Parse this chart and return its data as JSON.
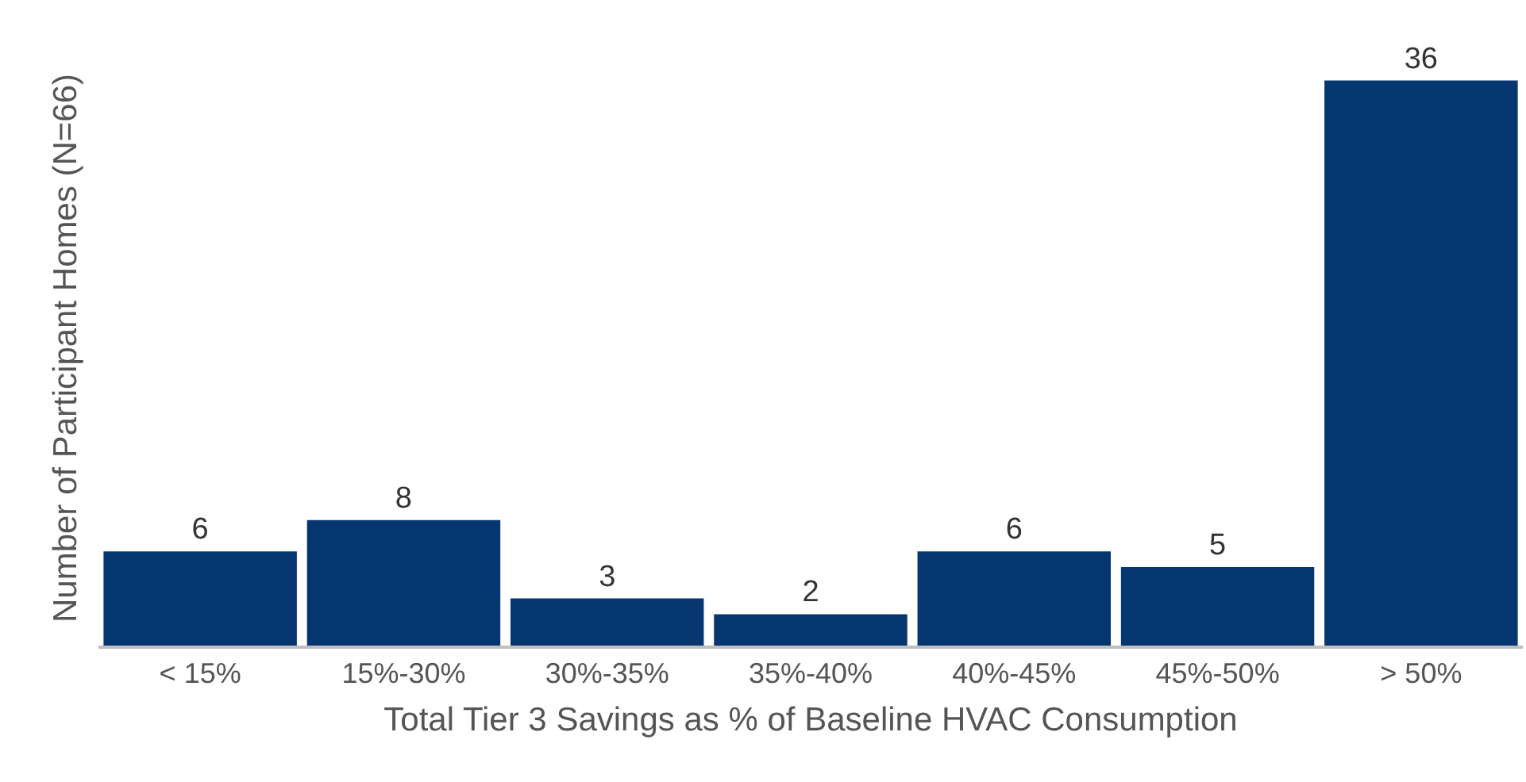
{
  "chart_data": {
    "type": "bar",
    "xlabel": "Total Tier 3 Savings as % of Baseline HVAC Consumption",
    "ylabel": "Number of Participant Homes (N=66)",
    "categories": [
      "< 15%",
      "15%-30%",
      "30%-35%",
      "35%-40%",
      "40%-45%",
      "45%-50%",
      "> 50%"
    ],
    "values": [
      6,
      8,
      3,
      2,
      6,
      5,
      36
    ],
    "color": "#063670",
    "data_labels": true,
    "tick_labels": "x",
    "grid": false,
    "legend": false
  }
}
